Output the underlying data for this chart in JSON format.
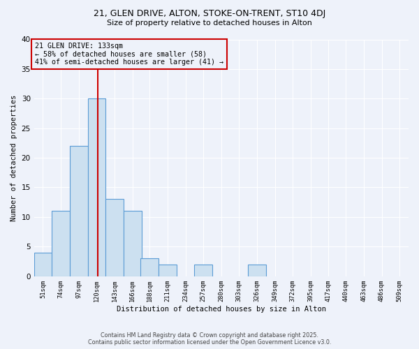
{
  "title1": "21, GLEN DRIVE, ALTON, STOKE-ON-TRENT, ST10 4DJ",
  "title2": "Size of property relative to detached houses in Alton",
  "xlabel": "Distribution of detached houses by size in Alton",
  "ylabel": "Number of detached properties",
  "bins": [
    51,
    74,
    97,
    120,
    143,
    166,
    188,
    211,
    234,
    257,
    280,
    303,
    326,
    349,
    372,
    395,
    417,
    440,
    463,
    486,
    509
  ],
  "counts": [
    4,
    11,
    22,
    30,
    13,
    11,
    3,
    2,
    0,
    2,
    0,
    0,
    2,
    0,
    0,
    0,
    0,
    0,
    0,
    0,
    0
  ],
  "bar_color": "#cce0f0",
  "bar_edge_color": "#5b9bd5",
  "vline_x": 133,
  "vline_color": "#cc0000",
  "annotation_title": "21 GLEN DRIVE: 133sqm",
  "annotation_line1": "← 58% of detached houses are smaller (58)",
  "annotation_line2": "41% of semi-detached houses are larger (41) →",
  "annotation_box_color": "#cc0000",
  "ylim": [
    0,
    40
  ],
  "yticks": [
    0,
    5,
    10,
    15,
    20,
    25,
    30,
    35,
    40
  ],
  "footer1": "Contains HM Land Registry data © Crown copyright and database right 2025.",
  "footer2": "Contains public sector information licensed under the Open Government Licence v3.0.",
  "bg_color": "#eef2fa"
}
